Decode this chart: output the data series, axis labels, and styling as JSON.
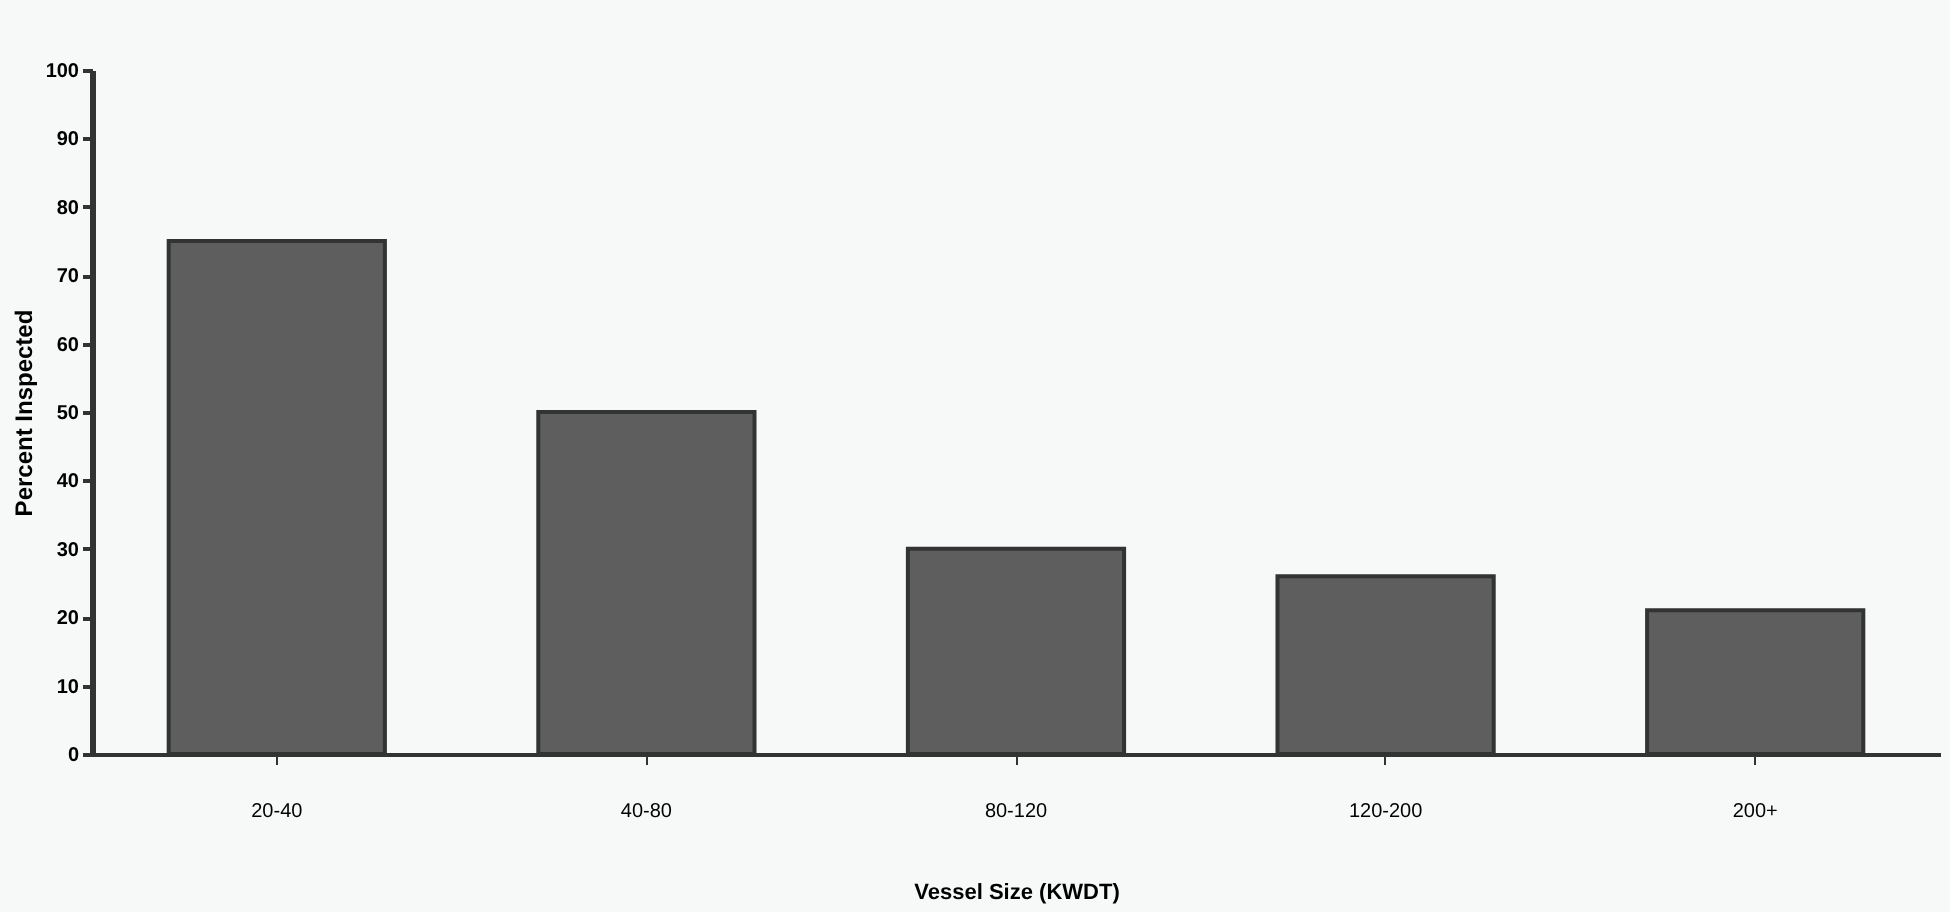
{
  "chart_data": {
    "type": "bar",
    "xlabel": "Vessel Size (KWDT)",
    "ylabel": "Percent   Inspected",
    "categories": [
      "20-40",
      "40-80",
      "80-120",
      "120-200",
      "200+"
    ],
    "values": [
      75,
      50,
      30,
      26,
      21
    ],
    "color": "#5e5e5e",
    "ylim": [
      0,
      100
    ],
    "yticks": [
      0,
      10,
      20,
      30,
      40,
      50,
      60,
      70,
      80,
      90,
      100
    ],
    "grid": false
  }
}
